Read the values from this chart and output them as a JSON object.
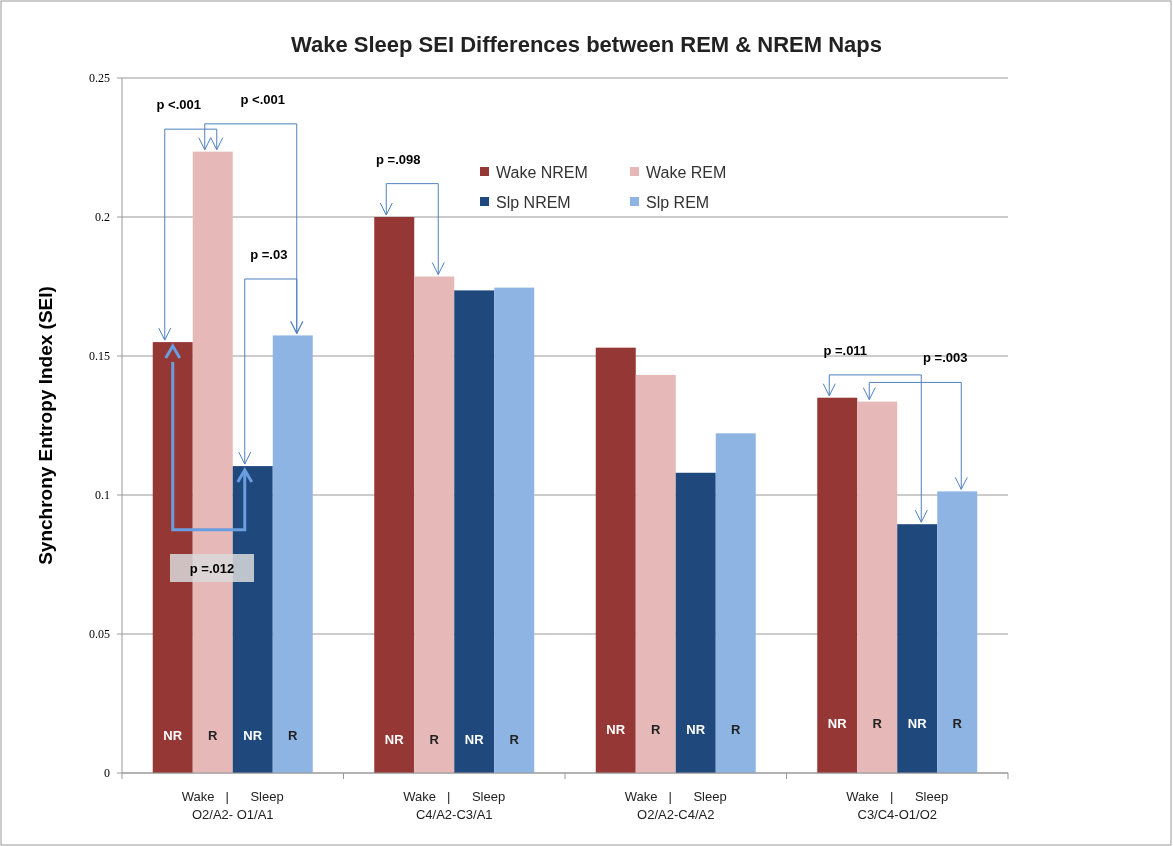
{
  "chart_data": {
    "type": "bar",
    "title": "Wake Sleep SEI Differences  between REM & NREM Naps",
    "ylabel": "Synchrony Entropy Index (SEI)",
    "categories": [
      "Wake   |      Sleep\nO2/A2- O1/A1",
      "Wake   |      Sleep\nC4/A2-C3/A1",
      "Wake   |      Sleep\nO2/A2-C4/A2",
      "Wake   |      Sleep\nC3/C4-O1/O2"
    ],
    "series": [
      {
        "name": "Wake NREM",
        "color": "#953735",
        "values": [
          0.155,
          0.2,
          0.153,
          0.135
        ],
        "value_labels": [
          "NR",
          "NR",
          "NR",
          "NR"
        ]
      },
      {
        "name": "Wake REM",
        "color": "#e6b9b8",
        "values": [
          0.2235,
          0.1786,
          0.1432,
          0.1336
        ],
        "value_labels": [
          "R",
          "R",
          "R",
          "R"
        ]
      },
      {
        "name": "Slp NREM",
        "color": "#1f497d",
        "values": [
          0.1104,
          0.1736,
          0.108,
          0.0895
        ],
        "value_labels": [
          "NR",
          "NR",
          "NR",
          "NR"
        ]
      },
      {
        "name": "Slp REM",
        "color": "#8eb4e3",
        "values": [
          0.1574,
          0.1746,
          0.1222,
          0.1013
        ],
        "value_labels": [
          "R",
          "R",
          "R",
          "R"
        ]
      }
    ],
    "ylim": [
      0,
      0.25
    ],
    "yticks": [
      0,
      0.05,
      0.1,
      0.15,
      0.2,
      0.25
    ],
    "grid": "y",
    "legend": "top right",
    "annotations": [
      "p <.001",
      "p <.001",
      "p =.03",
      "p =.098",
      "p =.011",
      "p =.003",
      "p =.012"
    ]
  }
}
